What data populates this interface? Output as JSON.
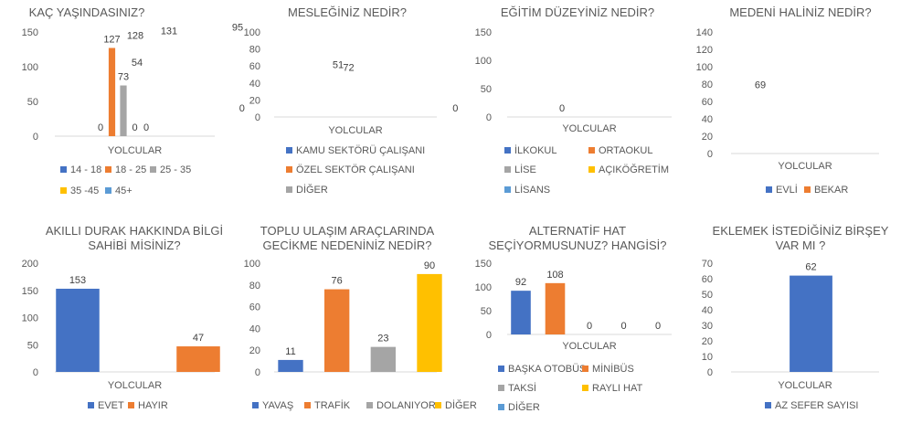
{
  "colors": {
    "blue": "#4472C4",
    "orange": "#ED7D31",
    "gray": "#A5A5A5",
    "yellow": "#FFC000",
    "lightblue": "#5B9BD5"
  },
  "chart_data": [
    {
      "type": "bar",
      "title": "KAÇ YAŞINDASINIZ?",
      "xlabel": "YOLCULAR",
      "ylim": [
        0,
        150
      ],
      "yticks": [
        0,
        50,
        100,
        150
      ],
      "categories": [
        "YOLCULAR"
      ],
      "series": [
        {
          "name": "14 - 18",
          "values": [
            0
          ],
          "color": "#4472C4"
        },
        {
          "name": "18 - 25",
          "values": [
            127
          ],
          "color": "#ED7D31"
        },
        {
          "name": "25 - 35",
          "values": [
            73
          ],
          "color": "#A5A5A5"
        },
        {
          "name": "35 -45",
          "values": [
            0
          ],
          "color": "#FFC000"
        },
        {
          "name": "45+",
          "values": [
            0
          ],
          "color": "#5B9BD5"
        }
      ],
      "legend": "bottom"
    },
    {
      "type": "bar",
      "title": "MESLEĞİNİZ NEDİR?",
      "xlabel": "YOLCULAR",
      "ylim": [
        0,
        100
      ],
      "yticks": [
        0,
        20,
        40,
        60,
        80,
        100
      ],
      "categories": [
        "YOLCULAR"
      ],
      "series": [
        {
          "name": "KAMU SEKTÖRÜ ÇALIŞANI",
          "values": [
            51
          ],
          "color": "#4472C4"
        },
        {
          "name": "ÖZEL SEKTÖR ÇALIŞANI",
          "values": [
            95
          ],
          "color": "#ED7D31"
        },
        {
          "name": "DİĞER",
          "values": [
            54
          ],
          "color": "#A5A5A5"
        }
      ],
      "legend": "bottom"
    },
    {
      "type": "bar",
      "title": "EĞİTİM DÜZEYİNİZ NEDİR?",
      "xlabel": "YOLCULAR",
      "ylim": [
        0,
        150
      ],
      "yticks": [
        0,
        50,
        100,
        150
      ],
      "categories": [
        "YOLCULAR"
      ],
      "series": [
        {
          "name": "İLKOKUL",
          "values": [
            0
          ],
          "color": "#4472C4"
        },
        {
          "name": "ORTAOKUL",
          "values": [
            0
          ],
          "color": "#ED7D31"
        },
        {
          "name": "LİSE",
          "values": [
            72
          ],
          "color": "#A5A5A5"
        },
        {
          "name": "AÇIKÖĞRETİM",
          "values": [
            0
          ],
          "color": "#FFC000"
        },
        {
          "name": "LİSANS",
          "values": [
            128
          ],
          "color": "#5B9BD5"
        }
      ],
      "legend": "bottom"
    },
    {
      "type": "bar",
      "title": "MEDENİ HALİNİZ NEDİR?",
      "xlabel": "YOLCULAR",
      "ylim": [
        0,
        140
      ],
      "yticks": [
        0,
        20,
        40,
        60,
        80,
        100,
        120,
        140
      ],
      "categories": [
        "YOLCULAR"
      ],
      "series": [
        {
          "name": "EVLİ",
          "values": [
            69
          ],
          "color": "#4472C4"
        },
        {
          "name": "BEKAR",
          "values": [
            131
          ],
          "color": "#ED7D31"
        }
      ],
      "legend": "bottom"
    },
    {
      "type": "bar",
      "title": [
        "AKILLI DURAK HAKKINDA BİLGİ",
        "SAHİBİ MİSİNİZ?"
      ],
      "xlabel": "YOLCULAR",
      "ylim": [
        0,
        200
      ],
      "yticks": [
        0,
        50,
        100,
        150,
        200
      ],
      "categories": [
        "YOLCULAR"
      ],
      "series": [
        {
          "name": "EVET",
          "values": [
            153
          ],
          "color": "#4472C4"
        },
        {
          "name": "HAYIR",
          "values": [
            47
          ],
          "color": "#ED7D31"
        }
      ],
      "legend": "bottom"
    },
    {
      "type": "bar",
      "title": [
        "TOPLU ULAŞIM ARAÇLARINDA",
        "GECİKME NEDENİNİZ NEDİR?"
      ],
      "xlabel": "",
      "ylim": [
        0,
        100
      ],
      "yticks": [
        0,
        20,
        40,
        60,
        80,
        100
      ],
      "categories": [
        ""
      ],
      "series": [
        {
          "name": "YAVAŞ",
          "values": [
            11
          ],
          "color": "#4472C4"
        },
        {
          "name": "TRAFİK",
          "values": [
            76
          ],
          "color": "#ED7D31"
        },
        {
          "name": "DOLANIYOR",
          "values": [
            23
          ],
          "color": "#A5A5A5"
        },
        {
          "name": "DİĞER",
          "values": [
            90
          ],
          "color": "#FFC000"
        }
      ],
      "legend": "bottom"
    },
    {
      "type": "bar",
      "title": [
        "ALTERNATİF HAT",
        "SEÇİYORMUSUNUZ? HANGİSİ?"
      ],
      "xlabel": "YOLCULAR",
      "ylim": [
        0,
        150
      ],
      "yticks": [
        0,
        50,
        100,
        150
      ],
      "categories": [
        "YOLCULAR"
      ],
      "series": [
        {
          "name": "BAŞKA OTOBÜS",
          "values": [
            92
          ],
          "color": "#4472C4"
        },
        {
          "name": "MİNİBÜS",
          "values": [
            108
          ],
          "color": "#ED7D31"
        },
        {
          "name": "TAKSİ",
          "values": [
            0
          ],
          "color": "#A5A5A5"
        },
        {
          "name": "RAYLI HAT",
          "values": [
            0
          ],
          "color": "#FFC000"
        },
        {
          "name": "DİĞER",
          "values": [
            0
          ],
          "color": "#5B9BD5"
        }
      ],
      "legend": "bottom"
    },
    {
      "type": "bar",
      "title": [
        "EKLEMEK İSTEDİĞİNİZ BİRŞEY",
        "VAR MI ?"
      ],
      "xlabel": "YOLCULAR",
      "ylim": [
        0,
        70
      ],
      "yticks": [
        0,
        10,
        20,
        30,
        40,
        50,
        60,
        70
      ],
      "categories": [
        "YOLCULAR"
      ],
      "series": [
        {
          "name": "AZ SEFER SAYISI",
          "values": [
            62
          ],
          "color": "#4472C4"
        }
      ],
      "legend": "bottom"
    }
  ]
}
